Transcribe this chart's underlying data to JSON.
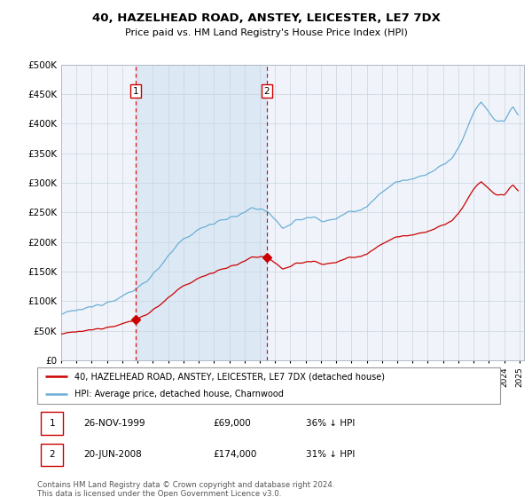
{
  "title": "40, HAZELHEAD ROAD, ANSTEY, LEICESTER, LE7 7DX",
  "subtitle": "Price paid vs. HM Land Registry's House Price Index (HPI)",
  "legend_line1": "40, HAZELHEAD ROAD, ANSTEY, LEICESTER, LE7 7DX (detached house)",
  "legend_line2": "HPI: Average price, detached house, Charnwood",
  "table_row1": [
    "1",
    "26-NOV-1999",
    "£69,000",
    "36% ↓ HPI"
  ],
  "table_row2": [
    "2",
    "20-JUN-2008",
    "£174,000",
    "31% ↓ HPI"
  ],
  "footnote": "Contains HM Land Registry data © Crown copyright and database right 2024.\nThis data is licensed under the Open Government Licence v3.0.",
  "purchase1_date": 1999.9,
  "purchase1_price": 69000,
  "purchase2_date": 2008.47,
  "purchase2_price": 174000,
  "hpi_color": "#6baed6",
  "price_color": "#cc0000",
  "shade_color": "#dce9f5",
  "plot_bg_color": "#f0f4fa",
  "ylim": [
    0,
    500000
  ],
  "xlim_start": 1995,
  "xlim_end": 2025.3
}
